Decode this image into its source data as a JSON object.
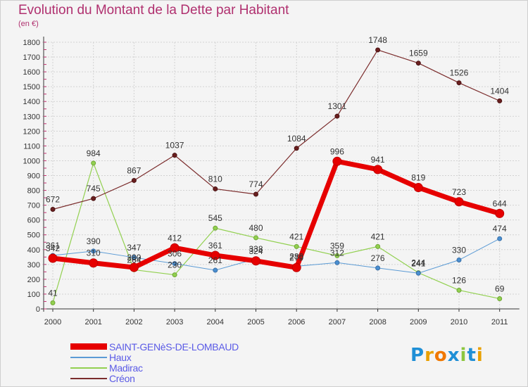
{
  "title": "Evolution du Montant de la Dette par Habitant",
  "subtitle": "(en €)",
  "chart_data": {
    "type": "line",
    "title": "Evolution du Montant de la Dette par Habitant",
    "subtitle": "(en €)",
    "xlabel": "",
    "ylabel": "",
    "categories": [
      "2000",
      "2001",
      "2002",
      "2003",
      "2004",
      "2005",
      "2006",
      "2007",
      "2008",
      "2009",
      "2010",
      "2011"
    ],
    "ylim": [
      0,
      1800
    ],
    "yticks": [
      0,
      100,
      200,
      300,
      400,
      500,
      600,
      700,
      800,
      900,
      1000,
      1100,
      1200,
      1300,
      1400,
      1500,
      1600,
      1700,
      1800
    ],
    "grid": true,
    "legend_position": "bottom-left",
    "series": [
      {
        "name": "SAINT-GENèS-DE-LOMBAUD",
        "color": "#e60000",
        "values": [
          342,
          310,
          280,
          412,
          361,
          324,
          279,
          996,
          941,
          819,
          723,
          644
        ]
      },
      {
        "name": "Haux",
        "color": "#5b9bd5",
        "values": [
          361,
          390,
          347,
          306,
          261,
          338,
          288,
          312,
          276,
          241,
          330,
          474
        ]
      },
      {
        "name": "Madirac",
        "color": "#92d050",
        "values": [
          41,
          984,
          264,
          230,
          545,
          480,
          421,
          359,
          421,
          244,
          126,
          69
        ]
      },
      {
        "name": "Créon",
        "color": "#7b2c2c",
        "values": [
          672,
          745,
          867,
          1037,
          810,
          774,
          1084,
          1301,
          1748,
          1659,
          1526,
          1404
        ]
      }
    ]
  },
  "legend": [
    {
      "label": "SAINT-GENèS-DE-LOMBAUD",
      "color": "#e60000"
    },
    {
      "label": "Haux",
      "color": "#5b9bd5"
    },
    {
      "label": "Madirac",
      "color": "#92d050"
    },
    {
      "label": "Créon",
      "color": "#7b2c2c"
    }
  ],
  "logo": {
    "text": "Proxiti"
  }
}
